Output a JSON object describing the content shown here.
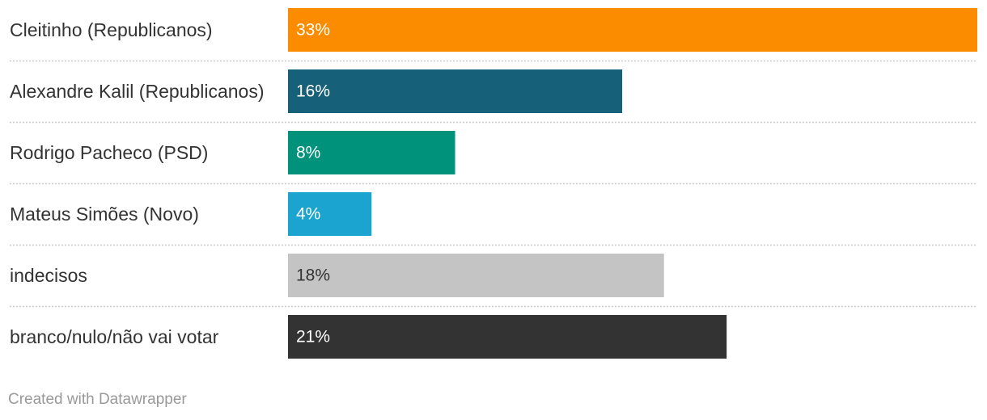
{
  "chart_data": {
    "type": "bar",
    "orientation": "horizontal",
    "categories": [
      "Cleitinho (Republicanos)",
      "Alexandre Kalil (Republicanos)",
      "Rodrigo Pacheco (PSD)",
      "Mateus Simões (Novo)",
      "indecisos",
      "branco/nulo/não vai votar"
    ],
    "values": [
      33,
      16,
      8,
      4,
      18,
      21
    ],
    "value_labels": [
      "33%",
      "16%",
      "8%",
      "4%",
      "18%",
      "21%"
    ],
    "colors": [
      "#fb8c00",
      "#17607a",
      "#00927a",
      "#1ba4d0",
      "#c4c4c4",
      "#333333"
    ],
    "label_colors": [
      "#ffffff",
      "#ffffff",
      "#ffffff",
      "#ffffff",
      "#333333",
      "#ffffff"
    ],
    "xlim": [
      0,
      33
    ],
    "grid": false,
    "separators": "dotted",
    "title": "",
    "xlabel": "",
    "ylabel": ""
  },
  "footer": {
    "credit": "Created with Datawrapper"
  }
}
